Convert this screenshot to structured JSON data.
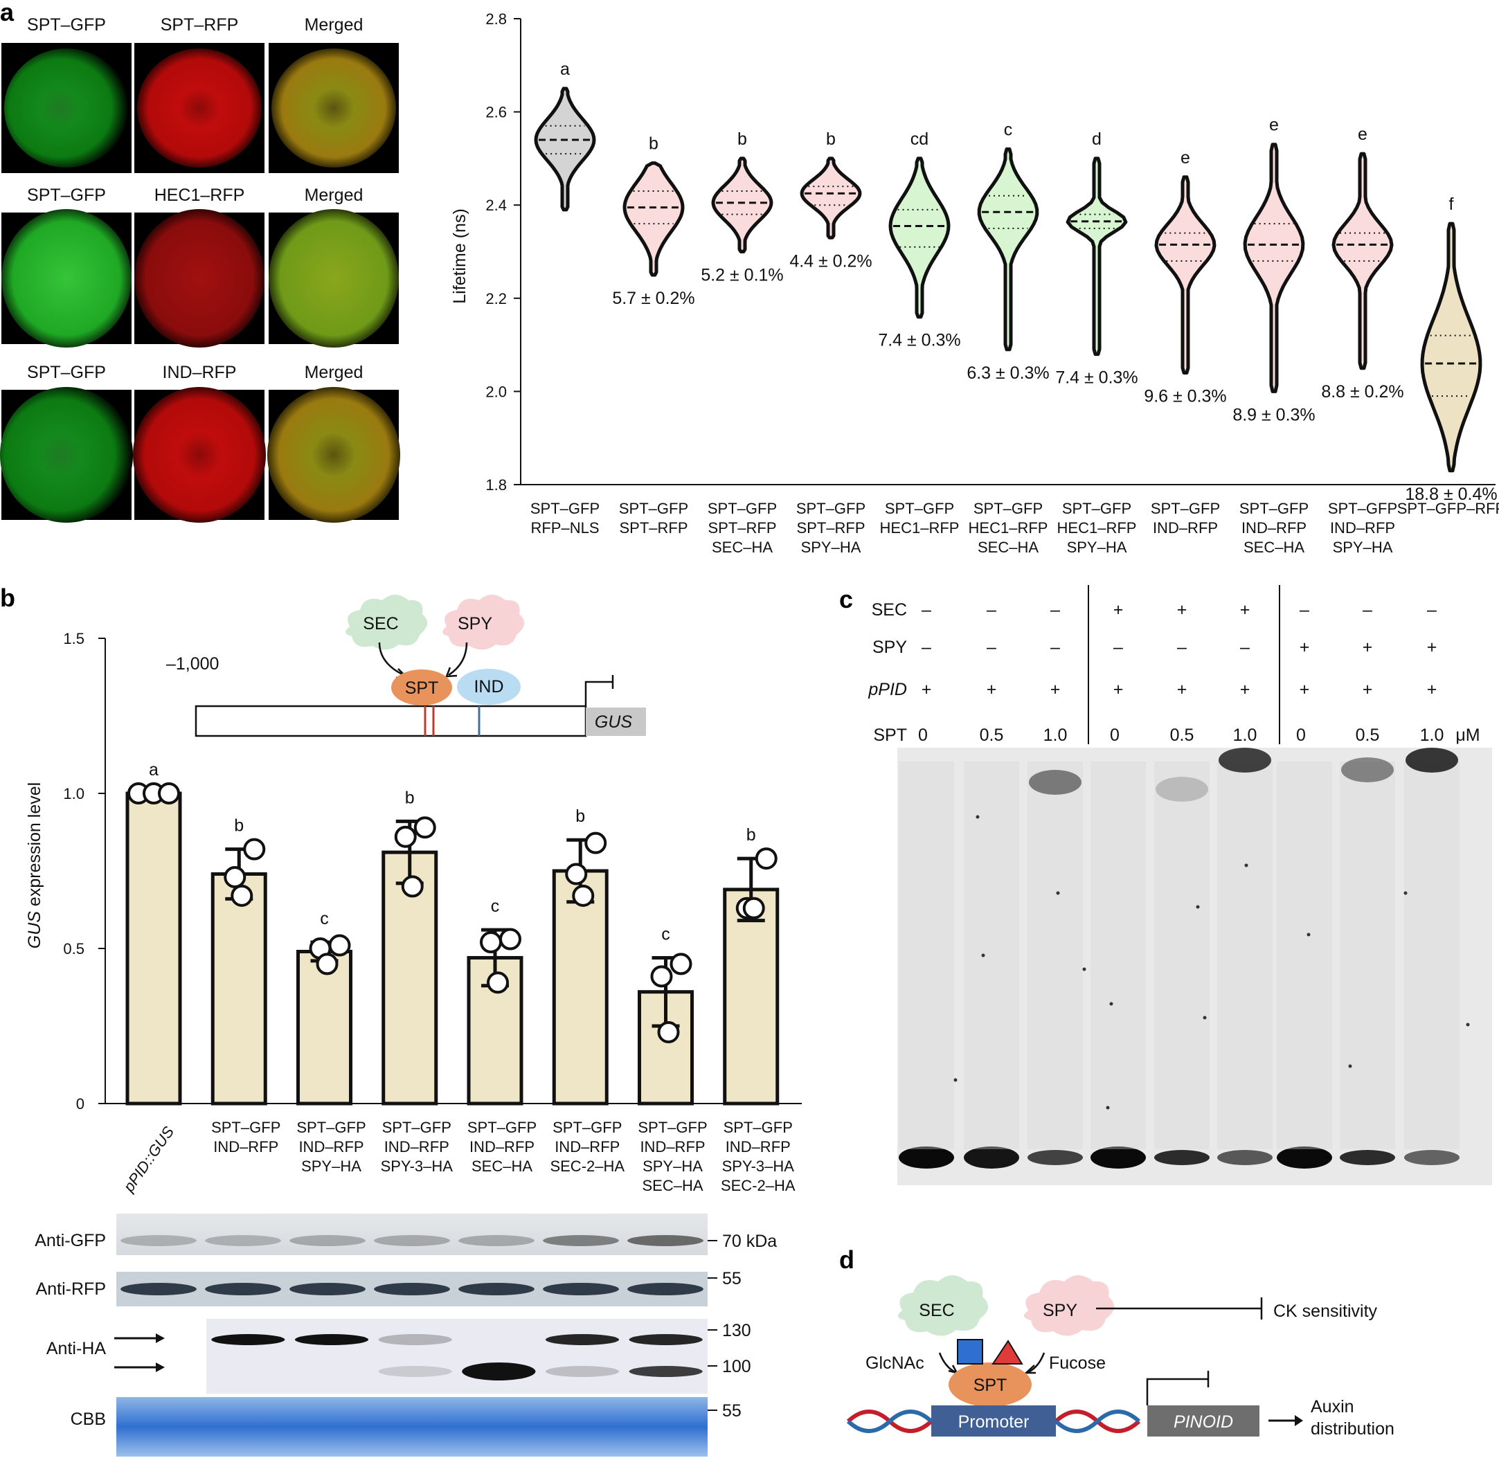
{
  "panel_letters": {
    "a": "a",
    "b": "b",
    "c": "c",
    "d": "d"
  },
  "panel_a": {
    "micro_rows": [
      {
        "labels": [
          "SPT–GFP",
          "SPT–RFP",
          "Merged"
        ]
      },
      {
        "labels": [
          "SPT–GFP",
          "HEC1–RFP",
          "Merged"
        ]
      },
      {
        "labels": [
          "SPT–GFP",
          "IND–RFP",
          "Merged"
        ]
      }
    ],
    "violin": {
      "ylabel": "Lifetime (ns)",
      "ylim": [
        1.8,
        2.8
      ],
      "yticks": [
        "1.8",
        "2.0",
        "2.2",
        "2.4",
        "2.6",
        "2.8"
      ],
      "groups": [
        {
          "label": [
            "SPT–GFP",
            "RFP–NLS"
          ],
          "median": 2.54,
          "q1": 2.51,
          "q3": 2.57,
          "min": 2.39,
          "max": 2.65,
          "letter": "a",
          "efficiency": "",
          "color": "#d4d4d4"
        },
        {
          "label": [
            "SPT–GFP",
            "SPT–RFP"
          ],
          "median": 2.395,
          "q1": 2.36,
          "q3": 2.43,
          "min": 2.25,
          "max": 2.49,
          "letter": "b",
          "efficiency": "5.7 ± 0.2%",
          "color": "#fbdcdc"
        },
        {
          "label": [
            "SPT–GFP",
            "SPT–RFP",
            "SEC–HA"
          ],
          "median": 2.405,
          "q1": 2.38,
          "q3": 2.43,
          "min": 2.3,
          "max": 2.5,
          "letter": "b",
          "efficiency": "5.2 ± 0.1%",
          "color": "#fbdcdc"
        },
        {
          "label": [
            "SPT–GFP",
            "SPT–RFP",
            "SPY–HA"
          ],
          "median": 2.425,
          "q1": 2.4,
          "q3": 2.44,
          "min": 2.33,
          "max": 2.5,
          "letter": "b",
          "efficiency": "4.4 ± 0.2%",
          "color": "#fbdcdc"
        },
        {
          "label": [
            "SPT–GFP",
            "HEC1–RFP"
          ],
          "median": 2.355,
          "q1": 2.31,
          "q3": 2.39,
          "min": 2.16,
          "max": 2.5,
          "letter": "cd",
          "efficiency": "7.4 ± 0.3%",
          "color": "#d7f5d0"
        },
        {
          "label": [
            "SPT–GFP",
            "HEC1–RFP",
            "SEC–HA"
          ],
          "median": 2.385,
          "q1": 2.35,
          "q3": 2.42,
          "min": 2.09,
          "max": 2.52,
          "letter": "c",
          "efficiency": "6.3 ± 0.3%",
          "color": "#d7f5d0"
        },
        {
          "label": [
            "SPT–GFP",
            "HEC1–RFP",
            "SPY–HA"
          ],
          "median": 2.365,
          "q1": 2.35,
          "q3": 2.38,
          "min": 2.08,
          "max": 2.5,
          "letter": "d",
          "efficiency": "7.4 ± 0.3%",
          "color": "#d7f5d0"
        },
        {
          "label": [
            "SPT–GFP",
            "IND–RFP"
          ],
          "median": 2.315,
          "q1": 2.28,
          "q3": 2.34,
          "min": 2.04,
          "max": 2.46,
          "letter": "e",
          "efficiency": "9.6 ± 0.3%",
          "color": "#fbdcdc"
        },
        {
          "label": [
            "SPT–GFP",
            "IND–RFP",
            "SEC–HA"
          ],
          "median": 2.315,
          "q1": 2.28,
          "q3": 2.36,
          "min": 2.0,
          "max": 2.53,
          "letter": "e",
          "efficiency": "8.9 ± 0.3%",
          "color": "#fbdcdc"
        },
        {
          "label": [
            "SPT–GFP",
            "IND–RFP",
            "SPY–HA"
          ],
          "median": 2.315,
          "q1": 2.28,
          "q3": 2.34,
          "min": 2.05,
          "max": 2.51,
          "letter": "e",
          "efficiency": "8.8 ± 0.2%",
          "color": "#fbdcdc"
        },
        {
          "label": [
            "SPT–GFP–RFP"
          ],
          "median": 2.06,
          "q1": 1.99,
          "q3": 2.12,
          "min": 1.83,
          "max": 2.36,
          "letter": "f",
          "efficiency": "18.8 ± 0.4%",
          "color": "#ede3c4"
        }
      ]
    }
  },
  "chart_data": [
    {
      "type": "violin",
      "ylabel": "Lifetime (ns)",
      "ylim": [
        1.8,
        2.8
      ],
      "categories": [
        "SPT–GFP RFP–NLS",
        "SPT–GFP SPT–RFP",
        "SPT–GFP SPT–RFP SEC–HA",
        "SPT–GFP SPT–RFP SPY–HA",
        "SPT–GFP HEC1–RFP",
        "SPT–GFP HEC1–RFP SEC–HA",
        "SPT–GFP HEC1–RFP SPY–HA",
        "SPT–GFP IND–RFP",
        "SPT–GFP IND–RFP SEC–HA",
        "SPT–GFP IND–RFP SPY–HA",
        "SPT–GFP–RFP"
      ],
      "medians": [
        2.54,
        2.395,
        2.405,
        2.425,
        2.355,
        2.385,
        2.365,
        2.315,
        2.315,
        2.315,
        2.06
      ],
      "significance": [
        "a",
        "b",
        "b",
        "b",
        "cd",
        "c",
        "d",
        "e",
        "e",
        "e",
        "f"
      ],
      "fret_efficiency": [
        "",
        "5.7 ± 0.2%",
        "5.2 ± 0.1%",
        "4.4 ± 0.2%",
        "7.4 ± 0.3%",
        "6.3 ± 0.3%",
        "7.4 ± 0.3%",
        "9.6 ± 0.3%",
        "8.9 ± 0.3%",
        "8.8 ± 0.2%",
        "18.8 ± 0.4%"
      ]
    },
    {
      "type": "bar",
      "ylabel": "GUS expression level",
      "ylim": [
        0,
        1.5
      ],
      "categories": [
        "pPID::GUS",
        "SPT–GFP IND–RFP",
        "SPT–GFP IND–RFP SPY–HA",
        "SPT–GFP IND–RFP SPY-3–HA",
        "SPT–GFP IND–RFP SEC–HA",
        "SPT–GFP IND–RFP SEC-2–HA",
        "SPT–GFP IND–RFP SPY–HA SEC–HA",
        "SPT–GFP IND–RFP SPY-3–HA SEC-2–HA"
      ],
      "values": [
        1.0,
        0.74,
        0.49,
        0.81,
        0.47,
        0.75,
        0.36,
        0.69
      ],
      "errors": [
        0.0,
        0.08,
        0.03,
        0.1,
        0.09,
        0.1,
        0.11,
        0.1
      ],
      "significance": [
        "a",
        "b",
        "c",
        "b",
        "c",
        "b",
        "c",
        "b"
      ]
    }
  ],
  "panel_b": {
    "ylabel_italic": "GUS",
    "ylabel_rest": " expression level",
    "ylim": [
      0,
      1.5
    ],
    "yticks": [
      "0",
      "0.5",
      "1.0",
      "1.5"
    ],
    "bars": [
      {
        "label": [
          "pPID::GUS"
        ],
        "value": 1.0,
        "error": 0.0,
        "points": [
          1.0,
          1.0,
          1.0
        ],
        "letter": "a"
      },
      {
        "label": [
          "SPT–GFP",
          "IND–RFP"
        ],
        "value": 0.74,
        "error": 0.08,
        "points": [
          0.82,
          0.73,
          0.67
        ],
        "letter": "b"
      },
      {
        "label": [
          "SPT–GFP",
          "IND–RFP",
          "SPY–HA"
        ],
        "value": 0.49,
        "error": 0.03,
        "points": [
          0.51,
          0.5,
          0.45
        ],
        "letter": "c"
      },
      {
        "label": [
          "SPT–GFP",
          "IND–RFP",
          "SPY-3–HA"
        ],
        "value": 0.81,
        "error": 0.1,
        "points": [
          0.89,
          0.86,
          0.7
        ],
        "letter": "b"
      },
      {
        "label": [
          "SPT–GFP",
          "IND–RFP",
          "SEC–HA"
        ],
        "value": 0.47,
        "error": 0.09,
        "points": [
          0.53,
          0.52,
          0.39
        ],
        "letter": "c"
      },
      {
        "label": [
          "SPT–GFP",
          "IND–RFP",
          "SEC-2–HA"
        ],
        "value": 0.75,
        "error": 0.1,
        "points": [
          0.84,
          0.74,
          0.67
        ],
        "letter": "b"
      },
      {
        "label": [
          "SPT–GFP",
          "IND–RFP",
          "SPY–HA",
          "SEC–HA"
        ],
        "value": 0.36,
        "error": 0.11,
        "points": [
          0.45,
          0.41,
          0.23
        ],
        "letter": "c"
      },
      {
        "label": [
          "SPT–GFP",
          "IND–RFP",
          "SPY-3–HA",
          "SEC-2–HA"
        ],
        "value": 0.69,
        "error": 0.1,
        "points": [
          0.79,
          0.63,
          0.63
        ],
        "letter": "b"
      }
    ],
    "schematic": {
      "position": "–1,000",
      "sec": "SEC",
      "spy": "SPY",
      "spt": "SPT",
      "ind": "IND",
      "gus": "GUS"
    },
    "blot": {
      "rows": [
        "Anti-GFP",
        "Anti-RFP",
        "Anti-HA",
        "CBB"
      ],
      "markers": [
        "70 kDa",
        "55",
        "130",
        "100",
        "55"
      ]
    }
  },
  "panel_c": {
    "row_labels": {
      "sec": "SEC",
      "spy": "SPY",
      "ppid": "pPID",
      "spt": "SPT"
    },
    "lanes": [
      {
        "sec": "–",
        "spy": "–",
        "ppid": "+",
        "spt": "0"
      },
      {
        "sec": "–",
        "spy": "–",
        "ppid": "+",
        "spt": "0.5"
      },
      {
        "sec": "–",
        "spy": "–",
        "ppid": "+",
        "spt": "1.0"
      },
      {
        "sec": "+",
        "spy": "–",
        "ppid": "+",
        "spt": "0"
      },
      {
        "sec": "+",
        "spy": "–",
        "ppid": "+",
        "spt": "0.5"
      },
      {
        "sec": "+",
        "spy": "–",
        "ppid": "+",
        "spt": "1.0"
      },
      {
        "sec": "–",
        "spy": "+",
        "ppid": "+",
        "spt": "0"
      },
      {
        "sec": "–",
        "spy": "+",
        "ppid": "+",
        "spt": "0.5"
      },
      {
        "sec": "–",
        "spy": "+",
        "ppid": "+",
        "spt": "1.0"
      }
    ],
    "unit": "μM"
  },
  "panel_d": {
    "sec": "SEC",
    "spy": "SPY",
    "spt": "SPT",
    "glcnac": "GlcNAc",
    "fucose": "Fucose",
    "ck": "CK sensitivity",
    "promoter": "Promoter",
    "pinoid": "PINOID",
    "auxin1": "Auxin",
    "auxin2": "distribution"
  },
  "colors": {
    "green_cloud": "#cfe8d2",
    "pink_cloud": "#f7d3d6",
    "spt_orange": "#e8935c",
    "ind_blue": "#b9dcf2",
    "bar_fill": "#efe6c8",
    "promoter_blue": "#3f5f95"
  }
}
